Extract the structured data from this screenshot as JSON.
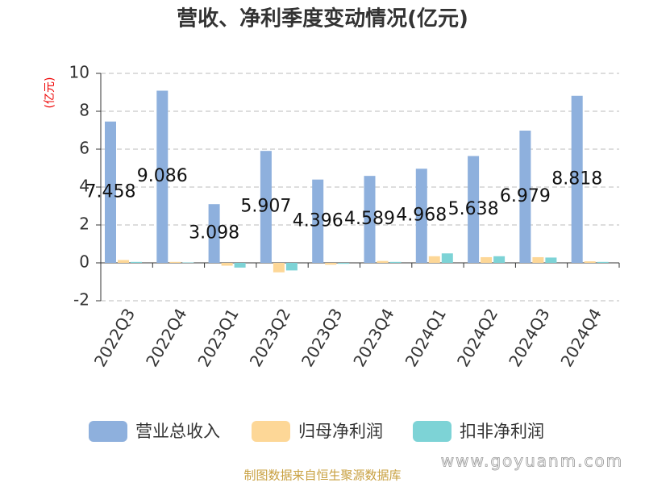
{
  "chart_data": {
    "type": "bar",
    "title": "营收、净利季度变动情况(亿元)",
    "y_label": "(亿元)",
    "categories": [
      "2022Q3",
      "2022Q4",
      "2023Q1",
      "2023Q2",
      "2023Q3",
      "2023Q4",
      "2024Q1",
      "2024Q2",
      "2024Q3",
      "2024Q4"
    ],
    "series": [
      {
        "name": "营业总收入",
        "color": "#8eb0dd",
        "values": [
          7.458,
          9.086,
          3.098,
          5.907,
          4.396,
          4.589,
          4.968,
          5.638,
          6.979,
          8.818
        ]
      },
      {
        "name": "归母净利润",
        "color": "#fdd797",
        "values": [
          0.15,
          0.05,
          -0.15,
          -0.5,
          -0.1,
          0.1,
          0.35,
          0.3,
          0.3,
          0.08
        ]
      },
      {
        "name": "扣非净利润",
        "color": "#7dd3d6",
        "values": [
          0.05,
          0.02,
          -0.25,
          -0.4,
          -0.05,
          0.05,
          0.5,
          0.35,
          0.28,
          0.05
        ]
      }
    ],
    "ylim": [
      -2,
      10
    ],
    "yticks": [
      -2,
      0,
      2,
      4,
      6,
      8,
      10
    ],
    "grid": true,
    "source": "制图数据来自恒生聚源数据库",
    "watermark": "www.goyuanm.com"
  }
}
